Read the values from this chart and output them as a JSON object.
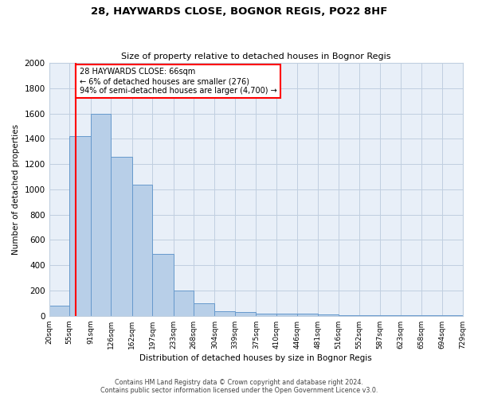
{
  "title": "28, HAYWARDS CLOSE, BOGNOR REGIS, PO22 8HF",
  "subtitle": "Size of property relative to detached houses in Bognor Regis",
  "xlabel": "Distribution of detached houses by size in Bognor Regis",
  "ylabel": "Number of detached properties",
  "bar_edges": [
    20,
    55,
    91,
    126,
    162,
    197,
    233,
    268,
    304,
    339,
    375,
    410,
    446,
    481,
    516,
    552,
    587,
    623,
    658,
    694,
    729
  ],
  "all_heights": [
    80,
    1420,
    1600,
    1260,
    1040,
    490,
    200,
    100,
    35,
    30,
    20,
    20,
    20,
    10,
    5,
    5,
    5,
    3,
    3,
    3
  ],
  "tick_labels": [
    "20sqm",
    "55sqm",
    "91sqm",
    "126sqm",
    "162sqm",
    "197sqm",
    "233sqm",
    "268sqm",
    "304sqm",
    "339sqm",
    "375sqm",
    "410sqm",
    "446sqm",
    "481sqm",
    "516sqm",
    "552sqm",
    "587sqm",
    "623sqm",
    "658sqm",
    "694sqm",
    "729sqm"
  ],
  "bar_color": "#b8cfe8",
  "bar_edge_color": "#6699cc",
  "red_line_x": 66,
  "annotation_title": "28 HAYWARDS CLOSE: 66sqm",
  "annotation_line1": "← 6% of detached houses are smaller (276)",
  "annotation_line2": "94% of semi-detached houses are larger (4,700) →",
  "ylim": [
    0,
    2000
  ],
  "yticks": [
    0,
    200,
    400,
    600,
    800,
    1000,
    1200,
    1400,
    1600,
    1800,
    2000
  ],
  "background_color": "#ffffff",
  "plot_bg_color": "#e8eff8",
  "grid_color": "#c0cfe0",
  "footer_line1": "Contains HM Land Registry data © Crown copyright and database right 2024.",
  "footer_line2": "Contains public sector information licensed under the Open Government Licence v3.0."
}
